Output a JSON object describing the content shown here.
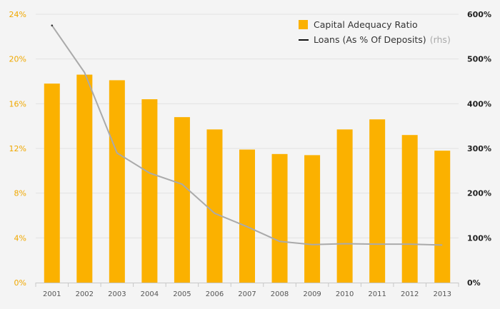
{
  "chart_data": {
    "type": "bar",
    "categories": [
      "2001",
      "2002",
      "2003",
      "2004",
      "2005",
      "2006",
      "2007",
      "2008",
      "2009",
      "2010",
      "2011",
      "2012",
      "2013"
    ],
    "series": [
      {
        "name": "Capital Adequacy Ratio",
        "type": "bar",
        "axis": "left",
        "color": "#fbb100",
        "values": [
          17.8,
          18.6,
          18.1,
          16.4,
          14.8,
          13.7,
          11.9,
          11.5,
          11.4,
          13.7,
          14.6,
          13.2,
          11.8
        ]
      },
      {
        "name": "Loans (As % Of Deposits)",
        "name_suffix": "(rhs)",
        "type": "line",
        "axis": "right",
        "color": "#aaaaaa",
        "values": [
          575,
          470,
          290,
          245,
          220,
          155,
          125,
          92,
          85,
          87,
          86,
          86,
          84
        ]
      }
    ],
    "y_left": {
      "ylim": [
        0,
        24
      ],
      "ticks": [
        "0%",
        "4%",
        "8%",
        "12%",
        "16%",
        "20%",
        "24%"
      ],
      "color": "#f0a800"
    },
    "y_right": {
      "ylim": [
        0,
        600
      ],
      "ticks": [
        "0%",
        "100%",
        "200%",
        "300%",
        "400%",
        "500%",
        "600%"
      ]
    },
    "grid": true,
    "legend": "top-right"
  }
}
